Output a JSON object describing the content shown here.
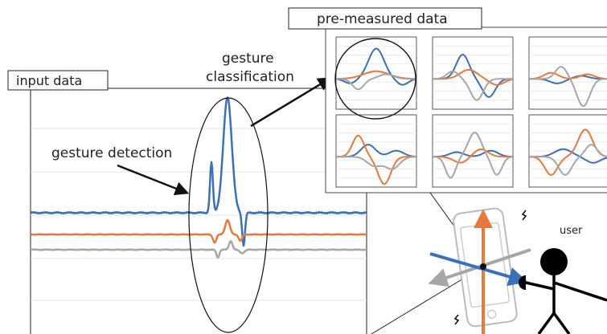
{
  "labels": {
    "input_data": "input data",
    "pre_measured_data": "pre-measured data",
    "gesture_classification_line1": "gesture",
    "gesture_classification_line2": "classification",
    "gesture_detection": "gesture detection",
    "user": "user"
  },
  "colors": {
    "blue": "#3a6fbd",
    "orange": "#e8793a",
    "gray": "#a6a6a6",
    "grid": "#e3e3e3",
    "ink": "#111111"
  },
  "input_signal": {
    "series": [
      {
        "color_key": "blue",
        "baseline": 1.0,
        "peaks": [
          [
            -2.0,
            -0.25,
            1.4
          ],
          [
            0.0,
            0.75,
            3.2
          ],
          [
            2.0,
            -0.25,
            -0.9
          ]
        ]
      },
      {
        "color_key": "orange",
        "baseline": 0.0,
        "peaks": [
          [
            -1.6,
            0.3,
            -0.5
          ],
          [
            0.0,
            0.4,
            0.9
          ],
          [
            1.6,
            0.3,
            -0.4
          ]
        ]
      },
      {
        "color_key": "gray",
        "baseline": -0.6,
        "peaks": [
          [
            -1.2,
            0.25,
            -0.45
          ],
          [
            0.4,
            0.3,
            0.5
          ],
          [
            1.8,
            0.4,
            -0.2
          ]
        ]
      }
    ]
  },
  "templates": [
    {
      "highlighted": true,
      "curves": [
        {
          "color_key": "blue",
          "peaks": [
            [
              0.0,
              0.55,
              1.0
            ],
            [
              -1.3,
              0.4,
              -0.15
            ],
            [
              1.3,
              0.4,
              -0.2
            ]
          ]
        },
        {
          "color_key": "orange",
          "peaks": [
            [
              0.0,
              0.9,
              0.25
            ]
          ]
        },
        {
          "color_key": "gray",
          "peaks": [
            [
              -0.9,
              0.4,
              -0.35
            ],
            [
              0.5,
              0.5,
              0.15
            ]
          ]
        }
      ]
    },
    {
      "highlighted": false,
      "curves": [
        {
          "color_key": "blue",
          "peaks": [
            [
              -0.5,
              0.45,
              0.8
            ],
            [
              0.8,
              0.45,
              -0.6
            ]
          ]
        },
        {
          "color_key": "orange",
          "peaks": [
            [
              -0.2,
              0.6,
              0.3
            ],
            [
              1.2,
              0.5,
              -0.2
            ]
          ]
        },
        {
          "color_key": "gray",
          "peaks": [
            [
              0.2,
              0.45,
              -0.7
            ],
            [
              -1.0,
              0.4,
              0.25
            ]
          ]
        }
      ]
    },
    {
      "highlighted": false,
      "curves": [
        {
          "color_key": "blue",
          "peaks": [
            [
              -0.6,
              0.5,
              -0.15
            ],
            [
              0.6,
              0.5,
              0.1
            ]
          ]
        },
        {
          "color_key": "orange",
          "peaks": [
            [
              -0.9,
              0.5,
              0.2
            ],
            [
              0.9,
              0.5,
              0.15
            ]
          ]
        },
        {
          "color_key": "gray",
          "peaks": [
            [
              -0.4,
              0.4,
              0.4
            ],
            [
              0.7,
              0.45,
              -0.9
            ]
          ]
        }
      ]
    },
    {
      "highlighted": false,
      "curves": [
        {
          "color_key": "blue",
          "peaks": [
            [
              -0.4,
              0.5,
              0.4
            ],
            [
              1.0,
              0.5,
              0.2
            ]
          ]
        },
        {
          "color_key": "orange",
          "peaks": [
            [
              -0.9,
              0.4,
              0.7
            ],
            [
              0.4,
              0.45,
              -0.9
            ]
          ]
        },
        {
          "color_key": "gray",
          "peaks": [
            [
              -0.1,
              0.5,
              -0.3
            ],
            [
              0.8,
              0.5,
              -0.4
            ]
          ]
        }
      ]
    },
    {
      "highlighted": false,
      "curves": [
        {
          "color_key": "blue",
          "peaks": [
            [
              -0.8,
              0.5,
              0.15
            ],
            [
              0.9,
              0.5,
              0.2
            ]
          ]
        },
        {
          "color_key": "orange",
          "peaks": [
            [
              -0.6,
              0.5,
              -0.2
            ],
            [
              0.4,
              0.5,
              0.25
            ]
          ]
        },
        {
          "color_key": "gray",
          "peaks": [
            [
              0.1,
              0.45,
              0.8
            ],
            [
              -1.1,
              0.35,
              -0.7
            ],
            [
              1.2,
              0.35,
              -0.6
            ]
          ]
        }
      ]
    },
    {
      "highlighted": false,
      "curves": [
        {
          "color_key": "blue",
          "peaks": [
            [
              -0.3,
              0.6,
              0.25
            ],
            [
              1.2,
              0.5,
              -0.2
            ]
          ]
        },
        {
          "color_key": "orange",
          "peaks": [
            [
              -0.9,
              0.45,
              -0.6
            ],
            [
              0.8,
              0.5,
              0.9
            ]
          ]
        },
        {
          "color_key": "gray",
          "peaks": [
            [
              -0.2,
              0.45,
              -0.6
            ],
            [
              1.1,
              0.4,
              0.4
            ]
          ]
        }
      ]
    }
  ]
}
